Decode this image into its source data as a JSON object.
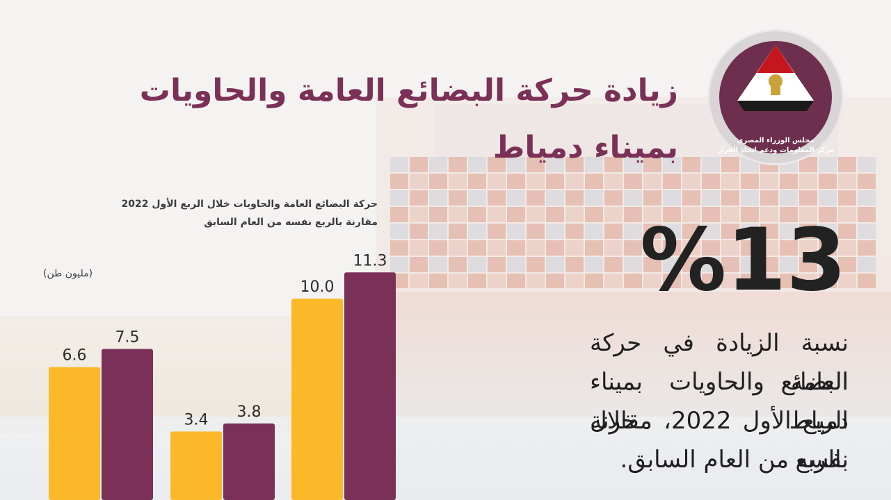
{
  "title": {
    "line1": "زيادة حركة البضائع العامة والحاويات",
    "line2": "بميناء دمياط"
  },
  "logo": {
    "line1": "مجلس الوزراء المصرى",
    "line2": "مركز المعلومات ودعم اتخاذ القرار"
  },
  "highlight": {
    "value": "%13",
    "description": [
      "نسبة الزيادة في حركة البضائع",
      "العامة والحاويات بميناء دمياط خلال",
      "الربع الأول 2022، مقارنة بالربع",
      "نفسه من العام السابق."
    ]
  },
  "colors": {
    "previous_year": "#fbb929",
    "current_year": "#7b3057",
    "title": "#7b3057"
  },
  "chart_data": {
    "type": "bar",
    "title": "حركة البضائع العامة والحاويات خلال الربع الأول 2022",
    "subtitle": "مقارنة بالربع نفسه من العام السابق",
    "ylabel": "(مليون طن)",
    "categories": [
      "",
      "",
      ""
    ],
    "series": [
      {
        "values": [
          6.6,
          3.4,
          10.0
        ],
        "labels": [
          "6.6",
          "3.4",
          "10.0"
        ],
        "color": "#fbb929"
      },
      {
        "values": [
          7.5,
          3.8,
          11.3
        ],
        "labels": [
          "7.5",
          "3.8",
          "11.3"
        ],
        "color": "#7b3057"
      }
    ],
    "ylim": [
      0,
      11.3
    ],
    "grid": false,
    "legend": "none"
  }
}
